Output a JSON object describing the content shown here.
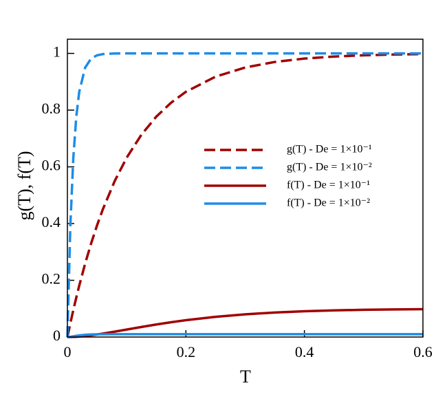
{
  "chart_data": {
    "type": "line",
    "xlabel": "T",
    "ylabel": "g(T), f(T)",
    "x": [
      0,
      0.005,
      0.01,
      0.015,
      0.02,
      0.03,
      0.04,
      0.05,
      0.06,
      0.08,
      0.1,
      0.125,
      0.15,
      0.175,
      0.2,
      0.25,
      0.3,
      0.35,
      0.4,
      0.45,
      0.5,
      0.55,
      0.6
    ],
    "series": [
      {
        "name": "g(T) - De = 1×10⁻¹",
        "color": "#a00000",
        "dash": true,
        "values": [
          0,
          0.0488,
          0.0952,
          0.1393,
          0.1813,
          0.2592,
          0.3297,
          0.3935,
          0.4512,
          0.5507,
          0.6321,
          0.7135,
          0.7769,
          0.8262,
          0.8647,
          0.9179,
          0.9502,
          0.9698,
          0.9817,
          0.9889,
          0.9933,
          0.9959,
          0.9975
        ]
      },
      {
        "name": "g(T) - De = 1×10⁻²",
        "color": "#1e8ce6",
        "dash": true,
        "values": [
          0,
          0.3935,
          0.6321,
          0.7769,
          0.8647,
          0.9502,
          0.9817,
          0.9933,
          0.9975,
          0.9997,
          1,
          1,
          1,
          1,
          1,
          1,
          1,
          1,
          1,
          1,
          1,
          1,
          1
        ]
      },
      {
        "name": "f(T) - De = 1×10⁻¹",
        "color": "#a00000",
        "dash": false,
        "values": [
          0,
          0.0001,
          0.0005,
          0.001,
          0.0018,
          0.0037,
          0.0062,
          0.009,
          0.0122,
          0.0191,
          0.0264,
          0.0355,
          0.0442,
          0.0522,
          0.0594,
          0.0713,
          0.0801,
          0.0864,
          0.0908,
          0.0939,
          0.096,
          0.0973,
          0.0983
        ]
      },
      {
        "name": "f(T) - De = 1×10⁻²",
        "color": "#1e8ce6",
        "dash": false,
        "values": [
          0,
          0.0009,
          0.0026,
          0.0044,
          0.0059,
          0.008,
          0.0091,
          0.0096,
          0.0098,
          0.01,
          0.01,
          0.01,
          0.01,
          0.01,
          0.01,
          0.01,
          0.01,
          0.01,
          0.01,
          0.01,
          0.01,
          0.01,
          0.01
        ]
      }
    ],
    "xlim": [
      0,
      0.6
    ],
    "xticks": [
      0,
      0.2,
      0.4,
      0.6
    ],
    "ylim": [
      0,
      1.05
    ],
    "yticks": [
      0,
      0.2,
      0.4,
      0.6,
      0.8,
      1
    ],
    "legend": "center-right"
  }
}
